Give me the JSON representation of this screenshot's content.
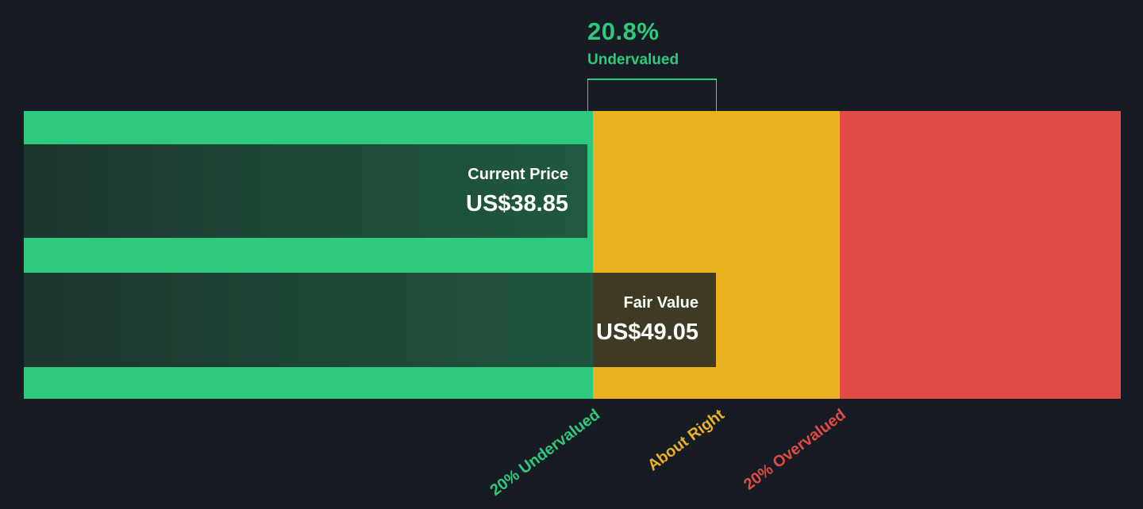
{
  "colors": {
    "background": "#161b24",
    "undervalued_green": "#2dc97e",
    "about_right_amber": "#eab221",
    "overvalued_red": "#e14b46",
    "bar_dark_green_start": "#1d352c",
    "bar_dark_green_end": "#215c41",
    "fair_value_box": "#3e3a23",
    "text_white": "#ffffff"
  },
  "annotation": {
    "percent": "20.8%",
    "label": "Undervalued"
  },
  "current_price": {
    "label": "Current Price",
    "value": "US$38.85"
  },
  "fair_value": {
    "label": "Fair Value",
    "value": "US$49.05"
  },
  "zone_labels": {
    "undervalued": "20% Undervalued",
    "about_right": "About Right",
    "overvalued": "20% Overvalued"
  },
  "chart_data": {
    "type": "bar",
    "orientation": "horizontal",
    "currency": "US$",
    "bars": [
      {
        "name": "Current Price",
        "value": 38.85,
        "display": "US$38.85"
      },
      {
        "name": "Fair Value",
        "value": 49.05,
        "display": "US$49.05"
      }
    ],
    "delta": {
      "percent": 20.8,
      "direction": "Undervalued"
    },
    "zones": [
      {
        "label": "20% Undervalued",
        "color": "#2dc97e",
        "band_fraction": 0.519
      },
      {
        "label": "About Right",
        "color": "#eab221",
        "band_fraction": 0.2245
      },
      {
        "label": "20% Overvalued",
        "color": "#e14b46",
        "band_fraction": 0.2565
      }
    ],
    "grid": false,
    "legend_position": "none"
  }
}
